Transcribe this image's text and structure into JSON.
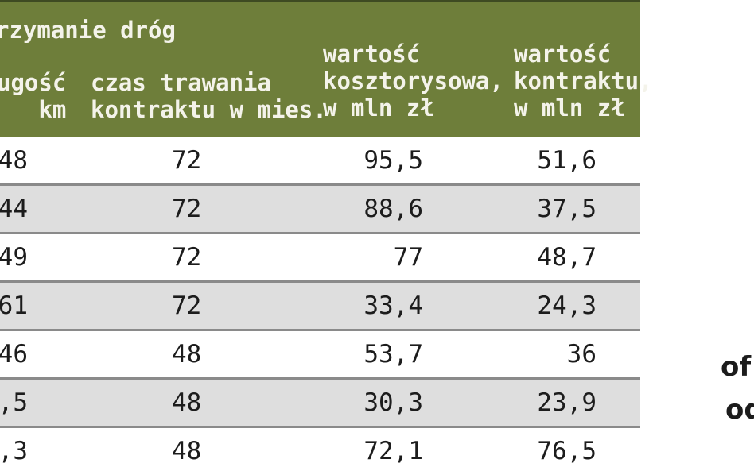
{
  "table": {
    "group_header": "rzymanie dróg",
    "columns": {
      "length": [
        "ugość",
        "km"
      ],
      "duration": [
        "czas trawania",
        "kontraktu w mies."
      ],
      "estimated_value": [
        "wartość",
        "kosztorysowa,",
        "w mln zł"
      ],
      "contract_value": [
        "wartość",
        "kontraktu,",
        "w mln zł"
      ]
    },
    "rows": [
      {
        "length": "48",
        "duration": "72",
        "estimated_value": "95,5",
        "contract_value": "51,6"
      },
      {
        "length": "44",
        "duration": "72",
        "estimated_value": "88,6",
        "contract_value": "37,5"
      },
      {
        "length": "49",
        "duration": "72",
        "estimated_value": "77",
        "contract_value": "48,7"
      },
      {
        "length": "61",
        "duration": "72",
        "estimated_value": "33,4",
        "contract_value": "24,3"
      },
      {
        "length": "46",
        "duration": "48",
        "estimated_value": "53,7",
        "contract_value": "36"
      },
      {
        "length": ",5",
        "duration": "48",
        "estimated_value": "30,3",
        "contract_value": "23,9"
      },
      {
        "length": ",3",
        "duration": "48",
        "estimated_value": "72,1",
        "contract_value": "76,5"
      }
    ]
  },
  "side_text": {
    "line1": "of",
    "line2": "od"
  },
  "colors": {
    "header_bg": "#6e7e3a",
    "header_text": "#f4f3ea",
    "alt_row_bg": "#dedede",
    "row_border": "#8a8a8a"
  }
}
